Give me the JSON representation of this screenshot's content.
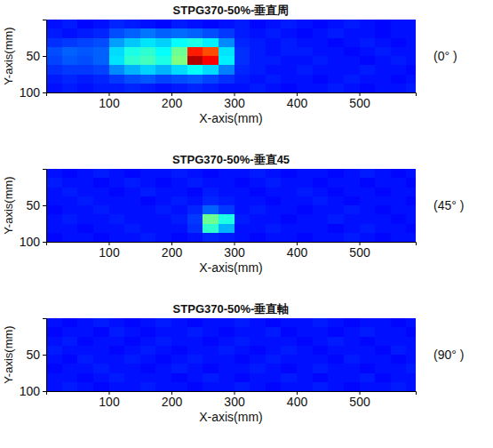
{
  "chart_data": [
    {
      "type": "heatmap",
      "title": "STPG370-50%-垂直周",
      "annotation": "(0° )",
      "xlabel": "X-axis(mm)",
      "ylabel": "Y-axis(mm)",
      "xlim": [
        0,
        590
      ],
      "ylim": [
        100,
        0
      ],
      "xticks": [
        100,
        200,
        300,
        400,
        500
      ],
      "yticks": [
        50,
        100
      ],
      "zlim": [
        0,
        100
      ],
      "x": [
        12.5,
        37.5,
        62.5,
        87.5,
        112.5,
        137.5,
        162.5,
        187.5,
        212.5,
        237.5,
        262.5,
        287.5,
        312.5,
        337.5,
        362.5,
        387.5,
        412.5,
        437.5,
        462.5,
        487.5,
        512.5,
        537.5,
        562.5,
        587.5
      ],
      "y": [
        6.25,
        18.75,
        31.25,
        43.75,
        56.25,
        68.75,
        81.25,
        93.75
      ],
      "z": [
        [
          14,
          15,
          13,
          14,
          16,
          15,
          14,
          13,
          15,
          14,
          13,
          14,
          15,
          13,
          14,
          15,
          14,
          13,
          14,
          15,
          14,
          13,
          14,
          14
        ],
        [
          15,
          14,
          15,
          16,
          20,
          22,
          24,
          22,
          23,
          22,
          20,
          18,
          15,
          14,
          15,
          14,
          13,
          14,
          15,
          14,
          14,
          13,
          14,
          14
        ],
        [
          17,
          18,
          19,
          20,
          28,
          32,
          35,
          33,
          38,
          40,
          36,
          26,
          16,
          15,
          14,
          15,
          14,
          14,
          13,
          14,
          15,
          14,
          13,
          14
        ],
        [
          20,
          22,
          21,
          22,
          34,
          40,
          42,
          38,
          48,
          85,
          80,
          35,
          17,
          15,
          14,
          15,
          15,
          14,
          14,
          13,
          14,
          15,
          14,
          14
        ],
        [
          19,
          21,
          20,
          22,
          35,
          42,
          44,
          40,
          50,
          95,
          88,
          36,
          17,
          15,
          15,
          14,
          14,
          15,
          14,
          14,
          13,
          14,
          15,
          14
        ],
        [
          17,
          18,
          18,
          19,
          26,
          30,
          33,
          30,
          34,
          38,
          34,
          25,
          16,
          15,
          14,
          14,
          15,
          14,
          14,
          14,
          15,
          14,
          14,
          13
        ],
        [
          15,
          16,
          15,
          16,
          18,
          20,
          21,
          19,
          20,
          21,
          19,
          17,
          15,
          14,
          15,
          14,
          14,
          13,
          14,
          15,
          14,
          14,
          13,
          14
        ],
        [
          14,
          15,
          14,
          15,
          15,
          16,
          15,
          14,
          15,
          16,
          15,
          14,
          14,
          15,
          14,
          13,
          14,
          14,
          15,
          14,
          13,
          14,
          14,
          15
        ]
      ]
    },
    {
      "type": "heatmap",
      "title": "STPG370-50%-垂直45",
      "annotation": "(45° )",
      "xlabel": "X-axis(mm)",
      "ylabel": "Y-axis(mm)",
      "xlim": [
        0,
        590
      ],
      "ylim": [
        100,
        0
      ],
      "xticks": [
        100,
        200,
        300,
        400,
        500
      ],
      "yticks": [
        50,
        100
      ],
      "zlim": [
        0,
        100
      ],
      "x": [
        12.5,
        37.5,
        62.5,
        87.5,
        112.5,
        137.5,
        162.5,
        187.5,
        212.5,
        237.5,
        262.5,
        287.5,
        312.5,
        337.5,
        362.5,
        387.5,
        412.5,
        437.5,
        462.5,
        487.5,
        512.5,
        537.5,
        562.5,
        587.5
      ],
      "y": [
        6.25,
        18.75,
        31.25,
        43.75,
        56.25,
        68.75,
        81.25,
        93.75
      ],
      "z": [
        [
          14,
          13,
          14,
          15,
          14,
          13,
          14,
          14,
          15,
          14,
          13,
          14,
          14,
          15,
          14,
          13,
          14,
          14,
          13,
          14,
          15,
          14,
          13,
          14
        ],
        [
          15,
          14,
          14,
          13,
          14,
          15,
          14,
          13,
          14,
          15,
          14,
          14,
          13,
          14,
          15,
          14,
          14,
          13,
          14,
          14,
          13,
          14,
          14,
          13
        ],
        [
          14,
          15,
          14,
          14,
          13,
          14,
          15,
          14,
          14,
          13,
          15,
          14,
          14,
          13,
          14,
          14,
          15,
          14,
          13,
          14,
          14,
          13,
          14,
          14
        ],
        [
          14,
          14,
          15,
          14,
          14,
          14,
          13,
          14,
          15,
          14,
          16,
          15,
          14,
          14,
          13,
          14,
          14,
          15,
          14,
          13,
          14,
          14,
          14,
          13
        ],
        [
          13,
          14,
          14,
          15,
          14,
          14,
          14,
          15,
          14,
          16,
          22,
          18,
          14,
          15,
          14,
          14,
          13,
          14,
          14,
          15,
          14,
          13,
          14,
          14
        ],
        [
          14,
          15,
          14,
          14,
          15,
          14,
          14,
          14,
          15,
          18,
          48,
          40,
          15,
          14,
          14,
          13,
          14,
          14,
          15,
          14,
          14,
          14,
          13,
          14
        ],
        [
          14,
          14,
          13,
          14,
          14,
          15,
          14,
          14,
          14,
          17,
          42,
          30,
          14,
          14,
          15,
          14,
          14,
          14,
          13,
          14,
          15,
          14,
          14,
          13
        ],
        [
          13,
          14,
          14,
          13,
          14,
          14,
          15,
          14,
          13,
          14,
          16,
          15,
          14,
          13,
          14,
          14,
          13,
          14,
          14,
          15,
          14,
          13,
          14,
          14
        ]
      ]
    },
    {
      "type": "heatmap",
      "title": "STPG370-50%-垂直軸",
      "annotation": "(90° )",
      "xlabel": "X-axis(mm)",
      "ylabel": "Y-axis(mm)",
      "xlim": [
        0,
        590
      ],
      "ylim": [
        100,
        0
      ],
      "xticks": [
        100,
        200,
        300,
        400,
        500
      ],
      "yticks": [
        50,
        100
      ],
      "zlim": [
        0,
        100
      ],
      "x": [
        12.5,
        37.5,
        62.5,
        87.5,
        112.5,
        137.5,
        162.5,
        187.5,
        212.5,
        237.5,
        262.5,
        287.5,
        312.5,
        337.5,
        362.5,
        387.5,
        412.5,
        437.5,
        462.5,
        487.5,
        512.5,
        537.5,
        562.5,
        587.5
      ],
      "y": [
        6.25,
        18.75,
        31.25,
        43.75,
        56.25,
        68.75,
        81.25,
        93.75
      ],
      "z": [
        [
          14,
          13,
          14,
          15,
          14,
          13,
          14,
          15,
          14,
          13,
          14,
          14,
          15,
          14,
          13,
          14,
          14,
          15,
          14,
          13,
          14,
          14,
          13,
          14
        ],
        [
          13,
          14,
          14,
          13,
          15,
          14,
          13,
          14,
          14,
          15,
          14,
          13,
          14,
          14,
          15,
          13,
          14,
          14,
          13,
          14,
          15,
          14,
          14,
          13
        ],
        [
          14,
          15,
          13,
          14,
          14,
          13,
          14,
          15,
          14,
          14,
          13,
          14,
          15,
          14,
          14,
          14,
          13,
          14,
          15,
          14,
          13,
          14,
          14,
          14
        ],
        [
          15,
          14,
          14,
          14,
          13,
          14,
          15,
          14,
          13,
          14,
          14,
          15,
          14,
          13,
          14,
          15,
          14,
          13,
          14,
          14,
          14,
          13,
          15,
          14
        ],
        [
          14,
          13,
          15,
          14,
          14,
          15,
          14,
          13,
          14,
          15,
          14,
          14,
          13,
          14,
          15,
          14,
          14,
          14,
          13,
          15,
          14,
          14,
          13,
          14
        ],
        [
          13,
          14,
          14,
          15,
          14,
          14,
          13,
          14,
          15,
          14,
          13,
          14,
          14,
          15,
          14,
          13,
          14,
          15,
          14,
          14,
          13,
          14,
          14,
          15
        ],
        [
          14,
          14,
          13,
          14,
          15,
          14,
          14,
          14,
          13,
          14,
          15,
          14,
          13,
          14,
          14,
          15,
          14,
          13,
          14,
          14,
          15,
          13,
          14,
          14
        ],
        [
          14,
          15,
          14,
          13,
          14,
          14,
          15,
          14,
          14,
          13,
          14,
          14,
          15,
          14,
          13,
          14,
          14,
          15,
          14,
          13,
          14,
          14,
          15,
          14
        ]
      ]
    }
  ]
}
